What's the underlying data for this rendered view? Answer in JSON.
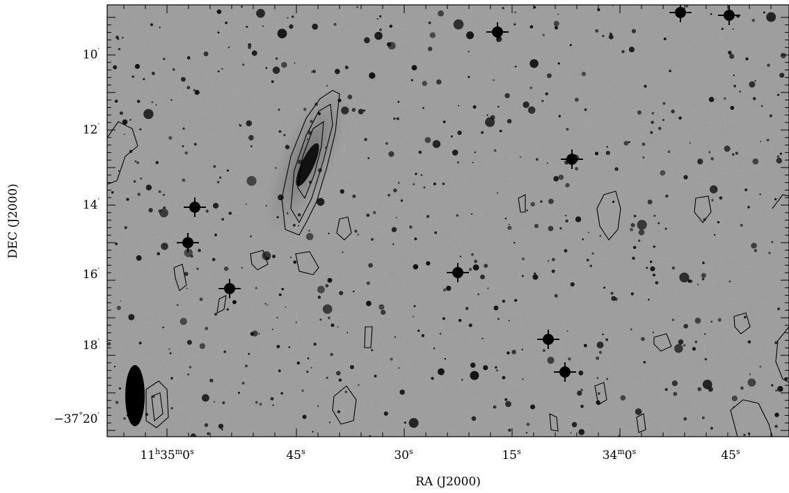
{
  "x_axis": {
    "label": "RA (J2000)",
    "ticks": [
      [
        "11",
        "h",
        "35",
        "m",
        "0",
        "s"
      ],
      [
        "45",
        "s"
      ],
      [
        "30",
        "s"
      ],
      [
        "15",
        "s"
      ],
      [
        "34",
        "m",
        "0",
        "s"
      ],
      [
        "45",
        "s"
      ]
    ]
  },
  "y_axis": {
    "label": "DEC (J2000)",
    "ticks": [
      [
        "10",
        "′"
      ],
      [
        "12",
        "′"
      ],
      [
        "14",
        "′"
      ],
      [
        "16",
        "′"
      ],
      [
        "18",
        "′"
      ],
      [
        "−37",
        "°",
        "20",
        "′"
      ]
    ]
  }
}
